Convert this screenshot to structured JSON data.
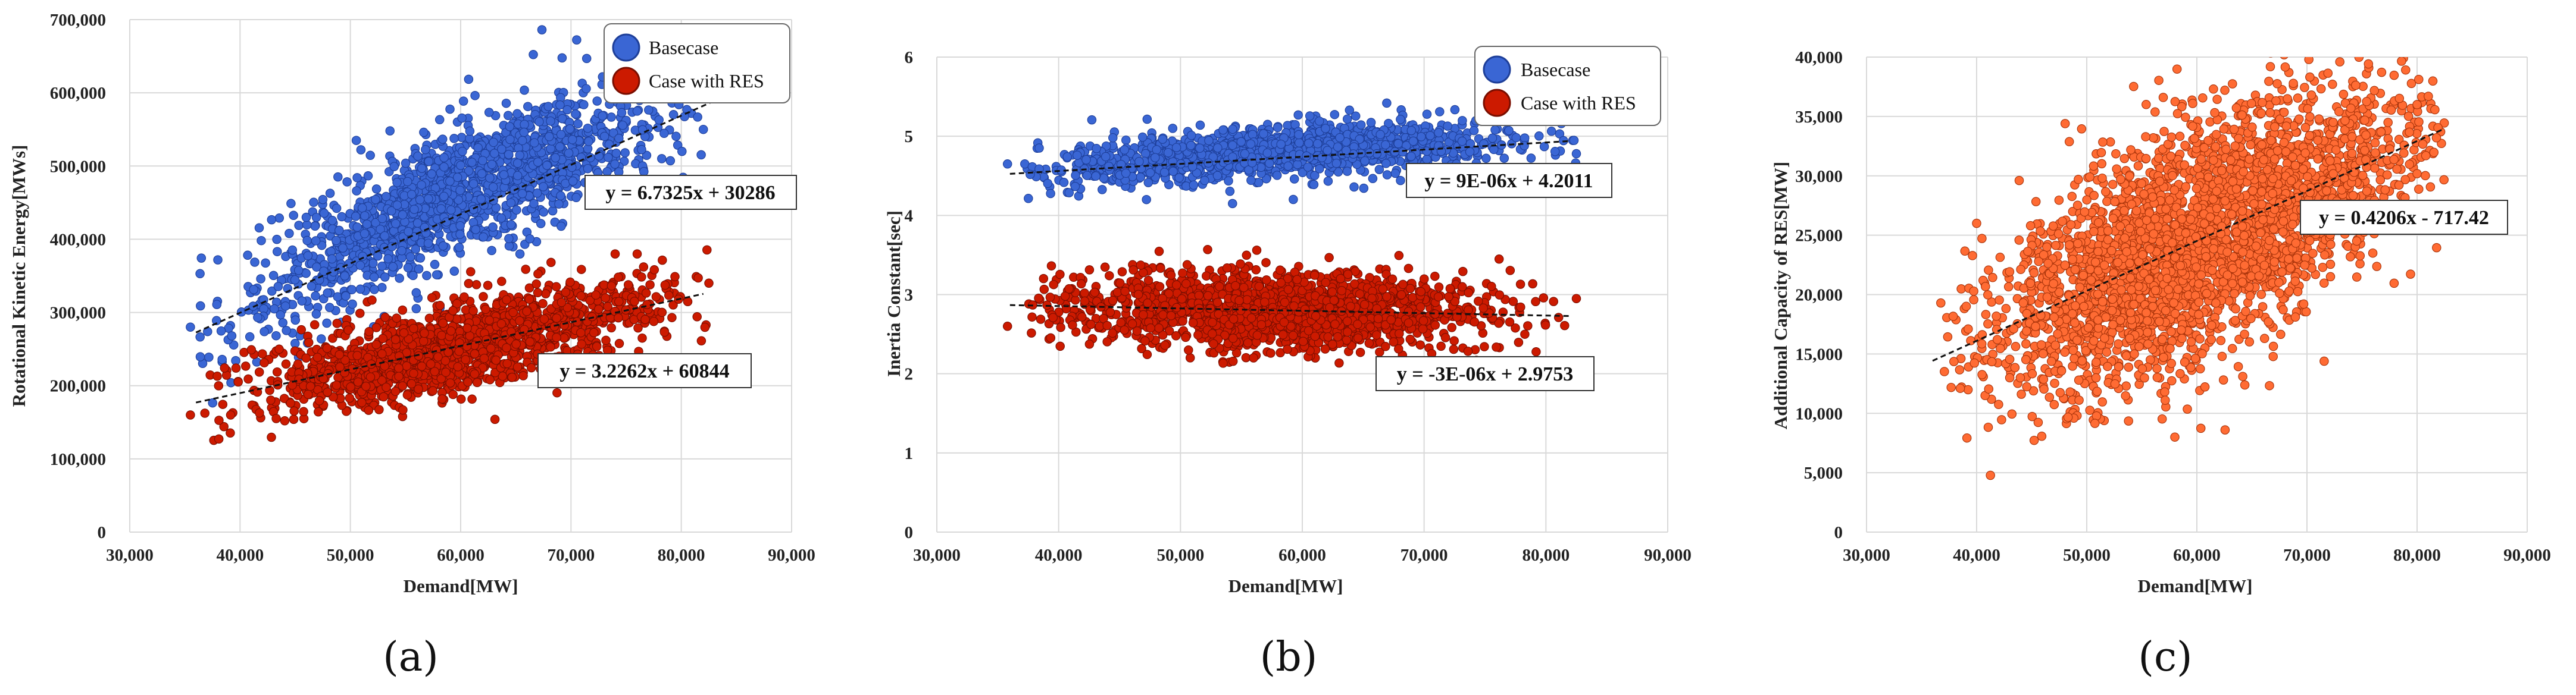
{
  "chart_data": [
    {
      "id": "a",
      "type": "scatter",
      "caption": "(a)",
      "xlabel": "Demand[MW]",
      "ylabel": "Rotational Kinetic Energy[MWs]",
      "xlim": [
        30000,
        90000
      ],
      "ylim": [
        0,
        700000
      ],
      "xticks": [
        30000,
        40000,
        50000,
        60000,
        70000,
        80000,
        90000
      ],
      "yticks": [
        0,
        100000,
        200000,
        300000,
        400000,
        500000,
        600000,
        700000
      ],
      "xtick_labels": [
        "30,000",
        "40,000",
        "50,000",
        "60,000",
        "70,000",
        "80,000",
        "90,000"
      ],
      "ytick_labels": [
        "0",
        "100,000",
        "200,000",
        "300,000",
        "400,000",
        "500,000",
        "600,000",
        "700,000"
      ],
      "legend": [
        "Basecase",
        "Case with RES"
      ],
      "series": [
        {
          "name": "Basecase",
          "color": "#3a66d4",
          "edge": "#1e3f99",
          "trend": {
            "slope": 6.7325,
            "intercept": 30286,
            "x_range": [
              36000,
              83000
            ],
            "label": "y = 6.7325x + 30286"
          },
          "cloud": {
            "x_range": [
              36000,
              82000
            ],
            "center": [
              60000,
              430000
            ],
            "spread": 42000,
            "curve": "concave",
            "outliers": [
              [
                35500,
                280000
              ],
              [
                46000,
                430000
              ],
              [
                76000,
                575000
              ],
              [
                82000,
                550000
              ]
            ]
          }
        },
        {
          "name": "Case with RES",
          "color": "#cc1a00",
          "edge": "#7a0e00",
          "trend": {
            "slope": 3.2262,
            "intercept": 60844,
            "x_range": [
              36000,
              82000
            ],
            "label": "y = 3.2262x + 60844"
          },
          "cloud": {
            "x_range": [
              36500,
              82500
            ],
            "center": [
              60000,
              255000
            ],
            "spread": 30000,
            "curve": "linear",
            "outliers": [
              [
                35500,
                160000
              ],
              [
                74000,
                380000
              ],
              [
                76000,
                380000
              ],
              [
                82500,
                340000
              ]
            ]
          }
        }
      ]
    },
    {
      "id": "b",
      "type": "scatter",
      "caption": "(b)",
      "xlabel": "Demand[MW]",
      "ylabel": "Inertia Constant[sec]",
      "xlim": [
        30000,
        90000
      ],
      "ylim": [
        0,
        6
      ],
      "xticks": [
        30000,
        40000,
        50000,
        60000,
        70000,
        80000,
        90000
      ],
      "yticks": [
        0,
        1,
        2,
        3,
        4,
        5,
        6
      ],
      "xtick_labels": [
        "30,000",
        "40,000",
        "50,000",
        "60,000",
        "70,000",
        "80,000",
        "90,000"
      ],
      "ytick_labels": [
        "0",
        "1",
        "2",
        "3",
        "4",
        "5",
        "6"
      ],
      "legend": [
        "Basecase",
        "Case with RES"
      ],
      "series": [
        {
          "name": "Basecase",
          "color": "#3a66d4",
          "edge": "#1e3f99",
          "trend": {
            "slope": 9e-06,
            "intercept": 4.2011,
            "x_range": [
              36000,
              82000
            ],
            "label": "y = 9E-06x + 4.2011"
          },
          "cloud": {
            "x_range": [
              37000,
              82500
            ],
            "center": [
              58000,
              4.7
            ],
            "spread": 0.16,
            "curve": "bump",
            "outliers": [
              [
                35800,
                4.65
              ],
              [
                82500,
                4.78
              ]
            ]
          }
        },
        {
          "name": "Case with RES",
          "color": "#cc1a00",
          "edge": "#7a0e00",
          "trend": {
            "slope": -3e-06,
            "intercept": 2.9753,
            "x_range": [
              36000,
              82000
            ],
            "label": "y = -3E-06x + 2.9753"
          },
          "cloud": {
            "x_range": [
              37500,
              82500
            ],
            "center": [
              58000,
              2.85
            ],
            "spread": 0.24,
            "curve": "flat",
            "outliers": [
              [
                35800,
                2.6
              ],
              [
                56000,
                2.2
              ],
              [
                82500,
                2.95
              ]
            ]
          }
        }
      ]
    },
    {
      "id": "c",
      "type": "scatter",
      "caption": "(c)",
      "xlabel": "Demand[MW]",
      "ylabel": "Additional Capacity of RES[MW]",
      "xlim": [
        30000,
        90000
      ],
      "ylim": [
        0,
        40000
      ],
      "xticks": [
        30000,
        40000,
        50000,
        60000,
        70000,
        80000,
        90000
      ],
      "yticks": [
        0,
        5000,
        10000,
        15000,
        20000,
        25000,
        30000,
        35000,
        40000
      ],
      "xtick_labels": [
        "30,000",
        "40,000",
        "50,000",
        "60,000",
        "70,000",
        "80,000",
        "90,000"
      ],
      "ytick_labels": [
        "0",
        "5,000",
        "10,000",
        "15,000",
        "20,000",
        "25,000",
        "30,000",
        "35,000",
        "40,000"
      ],
      "legend": [],
      "series": [
        {
          "name": "Additional Capacity of RES",
          "color": "#ff6b33",
          "edge": "#a8330a",
          "trend": {
            "slope": 0.4206,
            "intercept": -717.42,
            "x_range": [
              36000,
              82500
            ],
            "label": "y = 0.4206x - 717.42"
          },
          "cloud": {
            "x_range": [
              36500,
              82500
            ],
            "center": [
              60000,
              24500
            ],
            "spread": 3800,
            "curve": "linear",
            "outliers": [
              [
                58000,
                8000
              ],
              [
                40000,
                26000
              ],
              [
                80000,
                36000
              ]
            ]
          }
        }
      ]
    }
  ]
}
